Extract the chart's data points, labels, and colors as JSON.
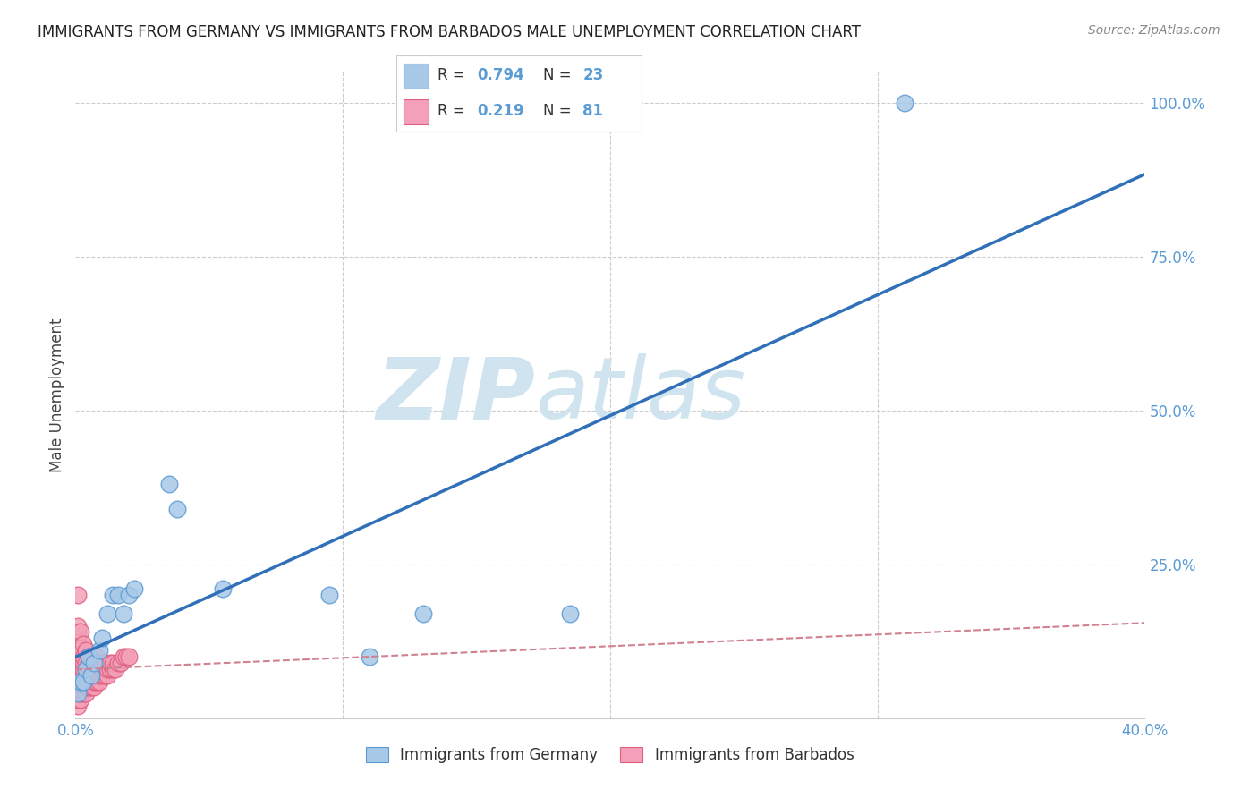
{
  "title": "IMMIGRANTS FROM GERMANY VS IMMIGRANTS FROM BARBADOS MALE UNEMPLOYMENT CORRELATION CHART",
  "source": "Source: ZipAtlas.com",
  "ylabel": "Male Unemployment",
  "xlim": [
    0.0,
    0.4
  ],
  "ylim": [
    0.0,
    1.05
  ],
  "xticks": [
    0.0,
    0.1,
    0.2,
    0.3,
    0.4
  ],
  "xtick_labels": [
    "0.0%",
    "",
    "",
    "",
    "40.0%"
  ],
  "yticks": [
    0.0,
    0.25,
    0.5,
    0.75,
    1.0
  ],
  "ytick_labels": [
    "",
    "25.0%",
    "50.0%",
    "75.0%",
    "100.0%"
  ],
  "germany_color": "#a8c8e8",
  "barbados_color": "#f4a0b8",
  "germany_edge_color": "#5b9bd5",
  "barbados_edge_color": "#e06080",
  "germany_line_color": "#3070b8",
  "barbados_line_color": "#d08090",
  "grid_color": "#cccccc",
  "watermark_color": "#d0e4f0",
  "legend_r_germany": "0.794",
  "legend_n_germany": "23",
  "legend_r_barbados": "0.219",
  "legend_n_barbados": "81",
  "germany_x": [
    0.001,
    0.002,
    0.003,
    0.004,
    0.005,
    0.006,
    0.007,
    0.009,
    0.01,
    0.012,
    0.014,
    0.016,
    0.018,
    0.02,
    0.022,
    0.035,
    0.038,
    0.055,
    0.095,
    0.11,
    0.13,
    0.185,
    0.31
  ],
  "germany_y": [
    0.04,
    0.06,
    0.06,
    0.08,
    0.1,
    0.07,
    0.09,
    0.11,
    0.13,
    0.17,
    0.2,
    0.2,
    0.17,
    0.2,
    0.21,
    0.38,
    0.34,
    0.21,
    0.2,
    0.1,
    0.17,
    0.17,
    1.0
  ],
  "barbados_x": [
    0.001,
    0.001,
    0.001,
    0.001,
    0.001,
    0.001,
    0.001,
    0.001,
    0.001,
    0.001,
    0.001,
    0.001,
    0.001,
    0.001,
    0.001,
    0.002,
    0.002,
    0.002,
    0.002,
    0.002,
    0.002,
    0.002,
    0.002,
    0.002,
    0.002,
    0.003,
    0.003,
    0.003,
    0.003,
    0.003,
    0.003,
    0.003,
    0.003,
    0.004,
    0.004,
    0.004,
    0.004,
    0.004,
    0.004,
    0.004,
    0.005,
    0.005,
    0.005,
    0.005,
    0.005,
    0.005,
    0.006,
    0.006,
    0.006,
    0.006,
    0.006,
    0.006,
    0.007,
    0.007,
    0.007,
    0.007,
    0.008,
    0.008,
    0.008,
    0.008,
    0.009,
    0.009,
    0.009,
    0.009,
    0.01,
    0.01,
    0.01,
    0.011,
    0.011,
    0.012,
    0.012,
    0.013,
    0.013,
    0.014,
    0.014,
    0.015,
    0.016,
    0.017,
    0.018,
    0.019,
    0.02
  ],
  "barbados_y": [
    0.02,
    0.03,
    0.04,
    0.05,
    0.06,
    0.07,
    0.08,
    0.09,
    0.1,
    0.11,
    0.12,
    0.13,
    0.14,
    0.15,
    0.2,
    0.03,
    0.04,
    0.05,
    0.06,
    0.07,
    0.08,
    0.09,
    0.1,
    0.11,
    0.14,
    0.04,
    0.05,
    0.06,
    0.07,
    0.08,
    0.09,
    0.1,
    0.12,
    0.04,
    0.05,
    0.06,
    0.07,
    0.08,
    0.09,
    0.11,
    0.05,
    0.06,
    0.07,
    0.08,
    0.09,
    0.1,
    0.05,
    0.06,
    0.07,
    0.08,
    0.09,
    0.1,
    0.05,
    0.06,
    0.07,
    0.09,
    0.06,
    0.07,
    0.08,
    0.1,
    0.06,
    0.07,
    0.08,
    0.09,
    0.07,
    0.08,
    0.09,
    0.07,
    0.09,
    0.07,
    0.08,
    0.08,
    0.09,
    0.08,
    0.09,
    0.08,
    0.09,
    0.09,
    0.1,
    0.1,
    0.1
  ]
}
